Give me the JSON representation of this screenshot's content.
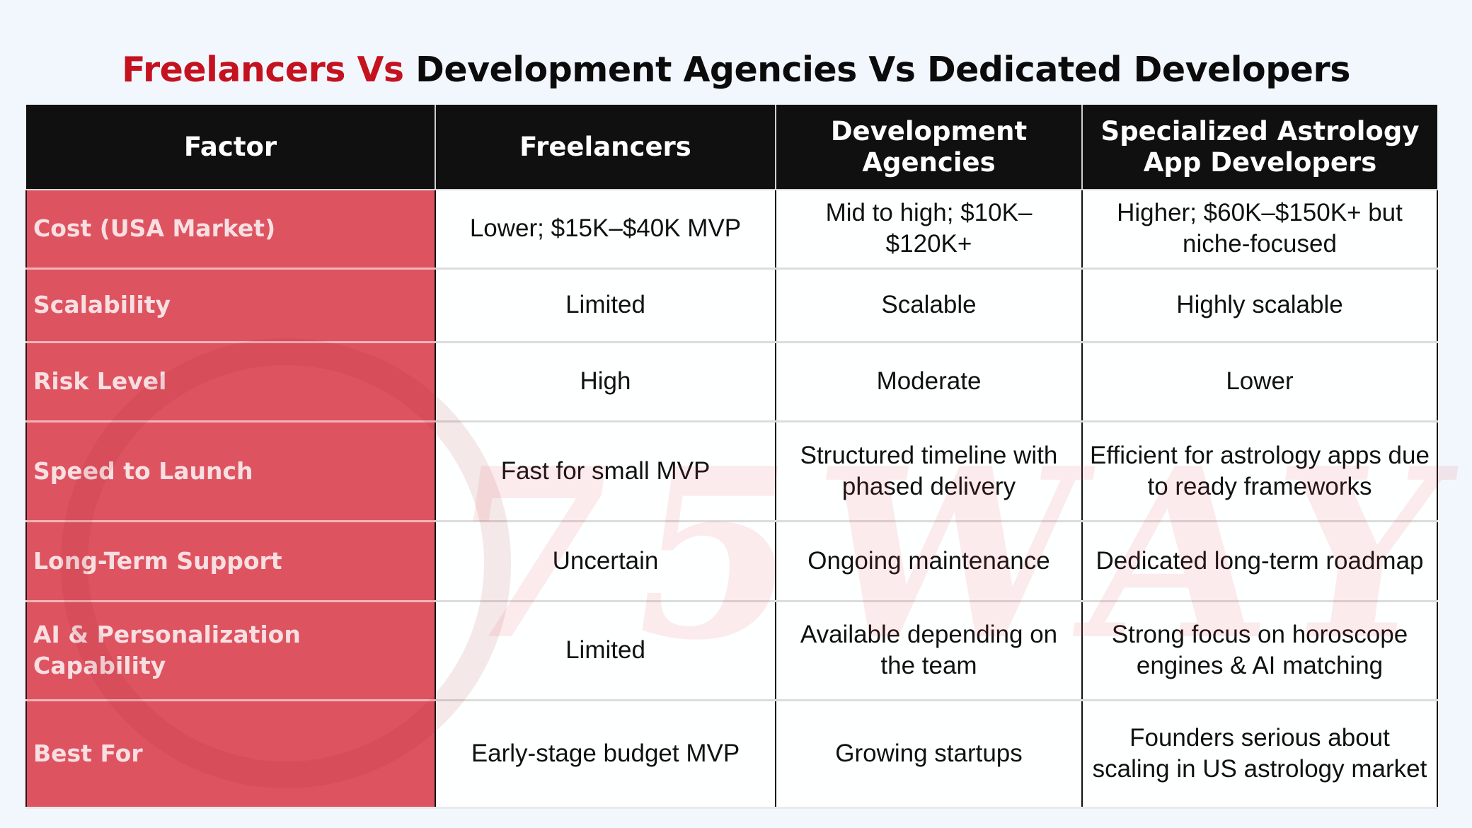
{
  "title": {
    "accent": "Freelancers Vs",
    "rest": "Development Agencies Vs Dedicated Developers"
  },
  "colors": {
    "title_accent": "#c4121f",
    "header_bg": "#111010",
    "factor_bg": "#de5360",
    "page_bg": "#f2f7fd"
  },
  "watermark": {
    "text": "75WAY",
    "logo_icon": "75way-logo-icon"
  },
  "table": {
    "headers": [
      "Factor",
      "Freelancers",
      "Development Agencies",
      "Specialized Astrology App Developers"
    ],
    "rows": [
      [
        "Cost (USA Market)",
        "Lower; $15K–$40K MVP",
        "Mid to high; $10K–$120K+",
        "Higher; $60K–$150K+ but niche-focused"
      ],
      [
        "Scalability",
        "Limited",
        "Scalable",
        "Highly scalable"
      ],
      [
        "Risk Level",
        "High",
        "Moderate",
        "Lower"
      ],
      [
        "Speed to Launch",
        "Fast for small MVP",
        "Structured timeline with phased delivery",
        "Efficient for astrology apps due to ready frameworks"
      ],
      [
        "Long-Term Support",
        "Uncertain",
        "Ongoing maintenance",
        "Dedicated long-term roadmap"
      ],
      [
        "AI & Personalization Capability",
        "Limited",
        "Available depending on the team",
        "Strong focus on horoscope engines & AI matching"
      ],
      [
        "Best For",
        "Early-stage budget MVP",
        "Growing startups",
        "Founders serious about scaling in US astrology market"
      ]
    ]
  }
}
